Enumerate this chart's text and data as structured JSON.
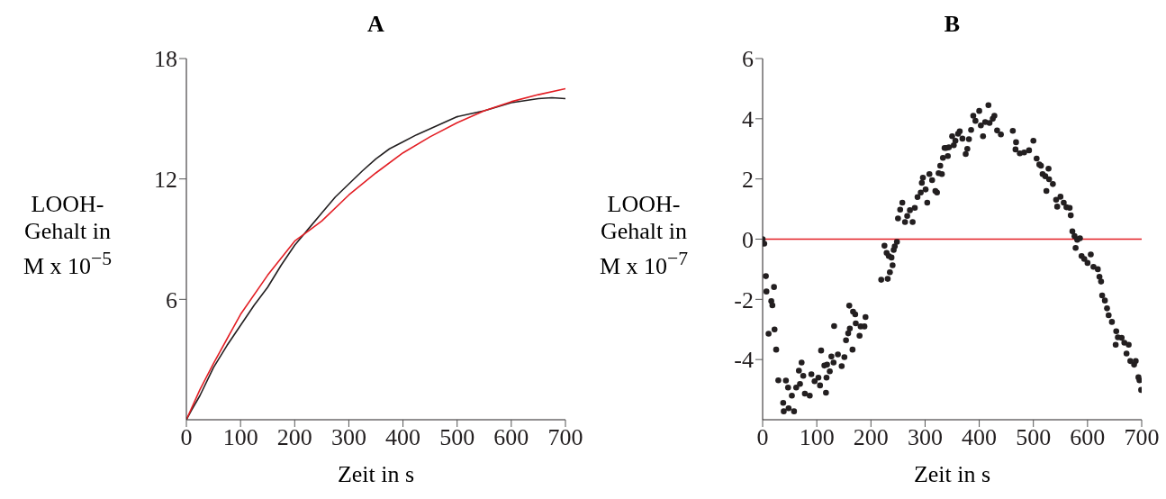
{
  "chart_data": [
    {
      "type": "line",
      "title": "A",
      "xlabel": "Zeit in s",
      "ylabel": "LOOH-\nGehalt in\nM x 10$^{−5}$",
      "xlim": [
        0,
        700
      ],
      "xticks": [
        0,
        100,
        200,
        300,
        400,
        500,
        600,
        700
      ],
      "ylim": [
        0,
        18
      ],
      "yticks": [
        6,
        12,
        18
      ],
      "series": [
        {
          "color": "#231f20",
          "x": [
            0,
            10,
            25,
            50,
            75,
            100,
            125,
            150,
            175,
            200,
            225,
            250,
            275,
            300,
            325,
            350,
            375,
            400,
            425,
            450,
            475,
            500,
            525,
            550,
            575,
            600,
            625,
            650,
            675,
            700
          ],
          "values": [
            0,
            0.5,
            1.2,
            2.6,
            3.7,
            4.7,
            5.7,
            6.6,
            7.7,
            8.7,
            9.5,
            10.3,
            11.1,
            11.75,
            12.4,
            13.0,
            13.5,
            13.85,
            14.2,
            14.5,
            14.8,
            15.1,
            15.25,
            15.4,
            15.6,
            15.8,
            15.9,
            16.0,
            16.05,
            16.0
          ]
        },
        {
          "color": "#e31e24",
          "x": [
            0,
            25,
            50,
            100,
            150,
            200,
            250,
            300,
            350,
            400,
            450,
            500,
            550,
            600,
            650,
            700
          ],
          "values": [
            0,
            1.5,
            2.8,
            5.25,
            7.2,
            8.9,
            9.9,
            11.2,
            12.3,
            13.3,
            14.1,
            14.8,
            15.4,
            15.85,
            16.2,
            16.5
          ]
        }
      ]
    },
    {
      "type": "scatter",
      "title": "B",
      "xlabel": "Zeit in s",
      "ylabel": "LOOH-\nGehalt in\nM x 10$^{−7}$",
      "xlim": [
        0,
        700
      ],
      "xticks": [
        0,
        100,
        200,
        300,
        400,
        500,
        600,
        700
      ],
      "ylim": [
        -6,
        6
      ],
      "yticks": [
        -4,
        -2,
        0,
        2,
        4,
        6
      ],
      "marker": "circle",
      "ref_lines": [
        {
          "axis": "y",
          "value": 0,
          "color": "#e31e24"
        }
      ],
      "series": [
        {
          "color": "#231f20",
          "x": [
            0,
            3,
            6,
            7,
            11,
            16,
            18,
            21,
            22,
            25,
            29,
            38,
            39,
            43,
            47,
            48,
            54,
            58,
            62,
            67,
            69,
            72,
            75,
            78,
            87,
            90,
            96,
            103,
            106,
            108,
            114,
            117,
            118,
            119,
            124,
            127,
            131,
            132,
            139,
            146,
            151,
            154,
            158,
            160,
            161,
            166,
            167,
            171,
            172,
            179,
            181,
            188,
            190,
            219,
            225,
            229,
            231,
            233,
            235,
            238,
            240,
            242,
            244,
            248,
            250,
            254,
            258,
            263,
            267,
            272,
            277,
            281,
            286,
            292,
            294,
            296,
            301,
            304,
            308,
            313,
            319,
            322,
            325,
            328,
            331,
            333,
            336,
            339,
            342,
            344,
            350,
            353,
            356,
            361,
            364,
            369,
            375,
            378,
            381,
            385,
            389,
            393,
            400,
            403,
            407,
            411,
            417,
            419,
            425,
            428,
            433,
            440,
            462,
            467,
            468,
            475,
            483,
            492,
            500,
            506,
            511,
            514,
            517,
            522,
            524,
            528,
            529,
            536,
            542,
            544,
            550,
            556,
            561,
            567,
            569,
            572,
            576,
            578,
            581,
            586,
            589,
            594,
            600,
            606,
            611,
            619,
            622,
            625,
            627,
            632,
            636,
            639,
            645,
            652,
            653,
            656,
            663,
            668,
            672,
            676,
            679,
            686,
            689,
            694,
            696,
            699
          ],
          "values": [
            0,
            -0.15,
            -1.23,
            -1.74,
            -3.14,
            -2.06,
            -2.2,
            -1.59,
            -3.0,
            -3.67,
            -4.69,
            -5.44,
            -5.72,
            -4.7,
            -4.93,
            -5.62,
            -5.2,
            -5.72,
            -4.93,
            -4.37,
            -4.81,
            -4.1,
            -4.54,
            -5.13,
            -5.2,
            -4.49,
            -4.72,
            -4.6,
            -4.86,
            -3.7,
            -4.2,
            -5.1,
            -4.6,
            -4.17,
            -4.39,
            -3.9,
            -4.1,
            -2.89,
            -3.83,
            -4.22,
            -3.92,
            -3.36,
            -3.13,
            -2.21,
            -2.97,
            -3.67,
            -2.41,
            -2.5,
            -2.8,
            -3.21,
            -2.9,
            -2.9,
            -2.59,
            -1.35,
            -0.22,
            -0.46,
            -1.32,
            -0.56,
            -1.1,
            -0.61,
            -0.87,
            -0.36,
            -0.24,
            -0.09,
            0.69,
            0.98,
            1.21,
            0.57,
            0.77,
            0.96,
            0.57,
            1.04,
            1.4,
            1.55,
            1.87,
            2.04,
            1.65,
            1.21,
            2.16,
            1.96,
            1.6,
            1.55,
            2.19,
            2.44,
            2.16,
            2.7,
            3.03,
            3.03,
            2.76,
            3.05,
            3.42,
            3.12,
            3.27,
            3.5,
            3.58,
            3.34,
            2.83,
            3.0,
            3.32,
            3.63,
            4.1,
            3.93,
            4.26,
            3.78,
            3.42,
            3.89,
            4.45,
            3.86,
            4.0,
            4.1,
            3.61,
            3.48,
            3.6,
            2.98,
            3.22,
            2.85,
            2.88,
            2.95,
            3.27,
            2.68,
            2.48,
            2.44,
            2.16,
            2.09,
            1.6,
            2.34,
            1.99,
            1.83,
            1.31,
            1.08,
            1.41,
            1.21,
            1.06,
            1.04,
            0.79,
            0.26,
            0.1,
            -0.29,
            -0.02,
            0.03,
            -0.56,
            -0.66,
            -0.79,
            -0.51,
            -0.92,
            -1.0,
            -1.25,
            -1.41,
            -1.87,
            -2.04,
            -2.3,
            -2.53,
            -2.75,
            -3.51,
            -3.06,
            -3.26,
            -3.28,
            -3.44,
            -3.8,
            -3.51,
            -4.05,
            -4.17,
            -4.05,
            -4.59,
            -4.69,
            -5.01
          ]
        }
      ]
    }
  ]
}
